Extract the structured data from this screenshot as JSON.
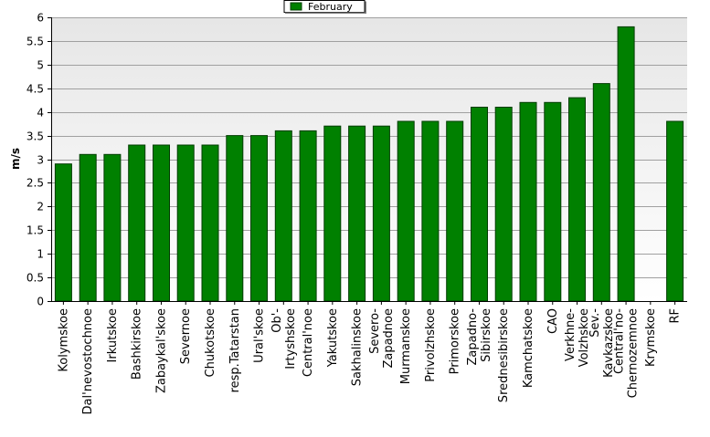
{
  "chart_data": {
    "type": "bar",
    "ylabel": "m/s",
    "ylim": [
      0,
      6
    ],
    "yticks": [
      0,
      0.5,
      1,
      1.5,
      2,
      2.5,
      3,
      3.5,
      4,
      4.5,
      5,
      5.5,
      6
    ],
    "ytick_labels": [
      "0",
      "0.5",
      "1",
      "1.5",
      "2",
      "2.5",
      "3",
      "3.5",
      "4",
      "4.5",
      "5",
      "5.5",
      "6"
    ],
    "grid": true,
    "legend_position": "top-center",
    "categories": [
      [
        "Kolymskoe"
      ],
      [
        "Dal'nevostochnoe"
      ],
      [
        "Irkutskoe"
      ],
      [
        "Bashkirskoe"
      ],
      [
        "Zabaykal'skoe"
      ],
      [
        "Severnoe"
      ],
      [
        "Chukotskoe"
      ],
      [
        "resp.Tatarstan"
      ],
      [
        "Ural'skoe"
      ],
      [
        "Ob'-",
        "Irtyshskoe"
      ],
      [
        "Central'noe"
      ],
      [
        "Yakutskoe"
      ],
      [
        "Sakhalinskoe"
      ],
      [
        "Severo-",
        "Zapadnoe"
      ],
      [
        "Murmanskoe"
      ],
      [
        "Privolzhskoe"
      ],
      [
        "Primorskoe"
      ],
      [
        "Zapadno-",
        "Sibirskoe"
      ],
      [
        "Srednesibirskoe"
      ],
      [
        "Kamchatskoe"
      ],
      [
        "CAO"
      ],
      [
        "Verkhne-",
        "Volzhskoe"
      ],
      [
        "Sev.-",
        "Kavkazskoe"
      ],
      [
        "Central'no-",
        "Chernozemnoe"
      ],
      [
        "Krymskoe"
      ],
      [
        "RF"
      ]
    ],
    "series": [
      {
        "name": "February",
        "color": "#008000",
        "values": [
          2.9,
          3.1,
          3.1,
          3.3,
          3.3,
          3.3,
          3.3,
          3.5,
          3.5,
          3.6,
          3.6,
          3.7,
          3.7,
          3.7,
          3.8,
          3.8,
          3.8,
          4.1,
          4.1,
          4.2,
          4.2,
          4.3,
          4.6,
          5.8,
          null,
          3.8
        ]
      }
    ],
    "colors": {
      "plot_top": "#e6e6e6",
      "plot_bottom": "#ffffff",
      "grid": "#a0a0a0",
      "bar_stroke": "#003c00"
    }
  }
}
